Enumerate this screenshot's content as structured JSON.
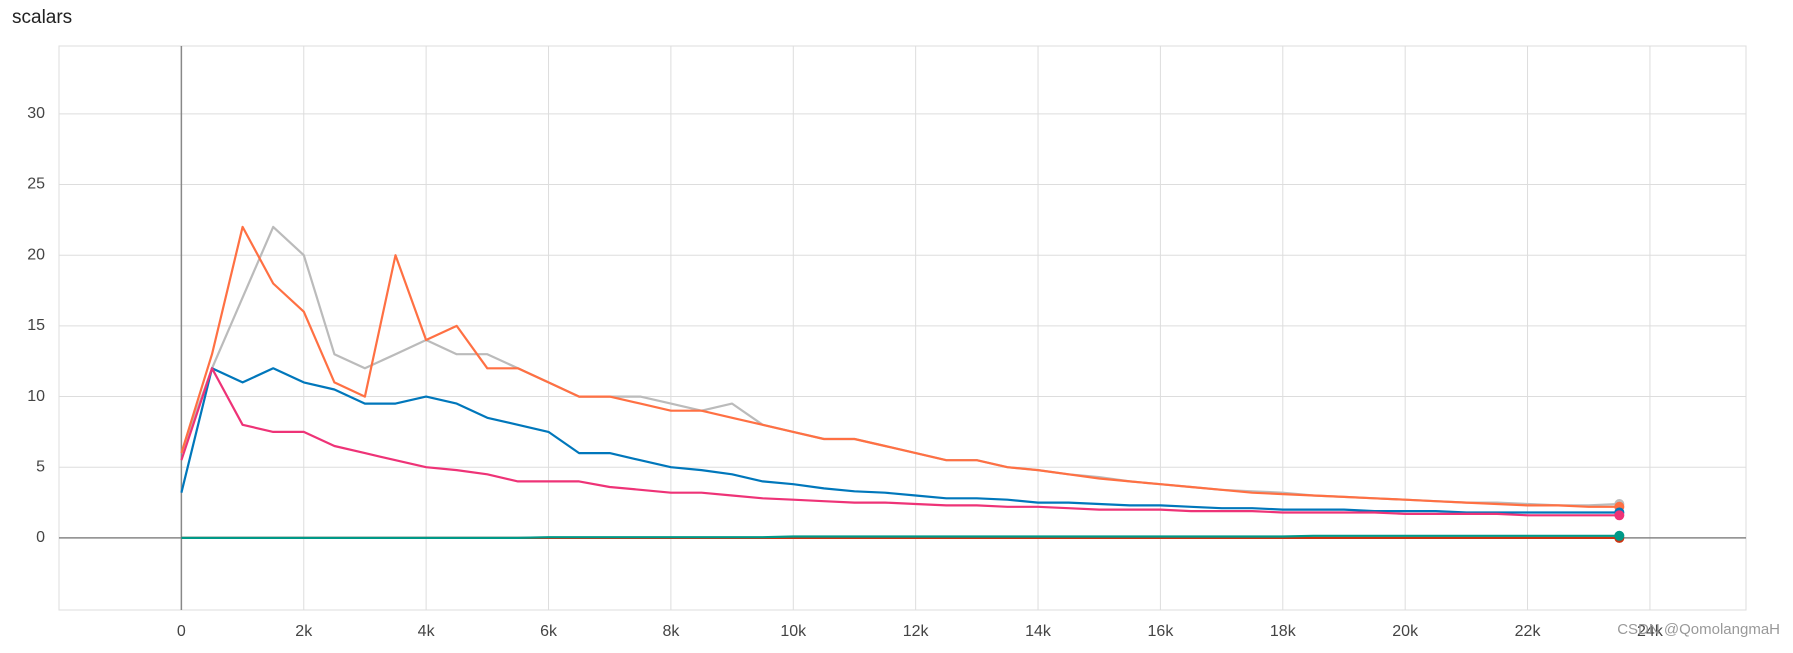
{
  "chart_data": {
    "type": "line",
    "title": "scalars",
    "x": [
      0,
      500,
      1000,
      1500,
      2000,
      2500,
      3000,
      3500,
      4000,
      4500,
      5000,
      5500,
      6000,
      6500,
      7000,
      7500,
      8000,
      8500,
      9000,
      9500,
      10000,
      10500,
      11000,
      11500,
      12000,
      12500,
      13000,
      13500,
      14000,
      14500,
      15000,
      15500,
      16000,
      16500,
      17000,
      17500,
      18000,
      18500,
      19000,
      19500,
      20000,
      20500,
      21000,
      21500,
      22000,
      22500,
      23000,
      23500
    ],
    "series": [
      {
        "color": "#bbbbbb",
        "values": [
          6,
          12,
          17,
          22,
          20,
          13,
          12,
          13,
          14,
          13,
          13,
          12,
          11,
          10,
          10,
          10,
          9.5,
          9,
          9.5,
          8,
          7.5,
          7,
          7,
          6.5,
          6,
          5.5,
          5.5,
          5,
          4.8,
          4.5,
          4.3,
          4,
          3.8,
          3.6,
          3.4,
          3.3,
          3.2,
          3,
          2.9,
          2.8,
          2.7,
          2.6,
          2.5,
          2.5,
          2.4,
          2.3,
          2.3,
          2.4
        ]
      },
      {
        "color": "#ff7043",
        "values": [
          6,
          13,
          22,
          18,
          16,
          11,
          10,
          20,
          14,
          15,
          12,
          12,
          11,
          10,
          10,
          9.5,
          9,
          9,
          8.5,
          8,
          7.5,
          7,
          7,
          6.5,
          6,
          5.5,
          5.5,
          5,
          4.8,
          4.5,
          4.2,
          4,
          3.8,
          3.6,
          3.4,
          3.2,
          3.1,
          3,
          2.9,
          2.8,
          2.7,
          2.6,
          2.5,
          2.4,
          2.3,
          2.3,
          2.2,
          2.2
        ]
      },
      {
        "color": "#0077bb",
        "values": [
          3.2,
          12,
          11,
          12,
          11,
          10.5,
          9.5,
          9.5,
          10,
          9.5,
          8.5,
          8,
          7.5,
          6,
          6,
          5.5,
          5,
          4.8,
          4.5,
          4,
          3.8,
          3.5,
          3.3,
          3.2,
          3,
          2.8,
          2.8,
          2.7,
          2.5,
          2.5,
          2.4,
          2.3,
          2.3,
          2.2,
          2.1,
          2.1,
          2,
          2,
          2,
          1.9,
          1.9,
          1.9,
          1.8,
          1.8,
          1.8,
          1.8,
          1.8,
          1.8
        ]
      },
      {
        "color": "#ee3377",
        "values": [
          5.5,
          12,
          8,
          7.5,
          7.5,
          6.5,
          6,
          5.5,
          5,
          4.8,
          4.5,
          4,
          4,
          4,
          3.6,
          3.4,
          3.2,
          3.2,
          3,
          2.8,
          2.7,
          2.6,
          2.5,
          2.5,
          2.4,
          2.3,
          2.3,
          2.2,
          2.2,
          2.1,
          2,
          2,
          2,
          1.9,
          1.9,
          1.9,
          1.8,
          1.8,
          1.8,
          1.8,
          1.7,
          1.7,
          1.7,
          1.7,
          1.6,
          1.6,
          1.6,
          1.6
        ]
      },
      {
        "color": "#cc3311",
        "values": [
          0,
          0,
          0,
          0,
          0,
          0,
          0,
          0,
          0,
          0,
          0,
          0,
          0,
          0,
          0,
          0,
          0,
          0,
          0,
          0,
          0,
          0,
          0,
          0,
          0,
          0,
          0,
          0,
          0,
          0,
          0,
          0,
          0,
          0,
          0,
          0,
          0,
          0,
          0,
          0,
          0,
          0,
          0,
          0,
          0,
          0,
          0,
          0
        ]
      },
      {
        "color": "#009988",
        "values": [
          0,
          0,
          0,
          0,
          0,
          0,
          0,
          0,
          0,
          0,
          0,
          0,
          0.05,
          0.05,
          0.05,
          0.05,
          0.05,
          0.05,
          0.05,
          0.05,
          0.1,
          0.1,
          0.1,
          0.1,
          0.1,
          0.1,
          0.1,
          0.1,
          0.1,
          0.1,
          0.1,
          0.1,
          0.1,
          0.1,
          0.1,
          0.1,
          0.1,
          0.15,
          0.15,
          0.15,
          0.15,
          0.15,
          0.15,
          0.15,
          0.15,
          0.15,
          0.15,
          0.15
        ]
      }
    ],
    "xlim": [
      -2000,
      25570
    ],
    "ylim": [
      -5.1,
      34.8
    ],
    "xticks": [
      0,
      {
        "value": 2000,
        "label": "2k"
      },
      {
        "value": 4000,
        "label": "4k"
      },
      {
        "value": 6000,
        "label": "6k"
      },
      {
        "value": 8000,
        "label": "8k"
      },
      {
        "value": 10000,
        "label": "10k"
      },
      {
        "value": 12000,
        "label": "12k"
      },
      {
        "value": 14000,
        "label": "14k"
      },
      {
        "value": 16000,
        "label": "16k"
      },
      {
        "value": 18000,
        "label": "18k"
      },
      {
        "value": 20000,
        "label": "20k"
      },
      {
        "value": 22000,
        "label": "22k"
      },
      {
        "value": 24000,
        "label": "24k"
      }
    ],
    "yticks": [
      0,
      5,
      10,
      15,
      20,
      25,
      30
    ],
    "grid": true
  },
  "watermark": "CSDN @QomolangmaH"
}
